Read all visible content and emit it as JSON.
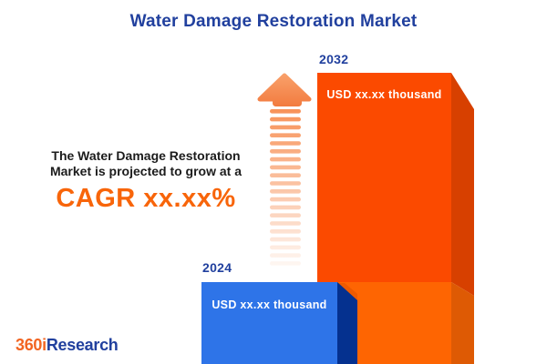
{
  "title": "Water Damage Restoration Market",
  "annotation": {
    "line1": "The Water Damage Restoration",
    "line2": "Market is projected to grow at a",
    "cagr": "CAGR xx.xx%"
  },
  "bars": {
    "b2024": {
      "year": "2024",
      "label": "USD xx.xx thousand",
      "face_color": "#2E74E8",
      "side_color": "#05318F"
    },
    "b2032": {
      "year": "2032",
      "label": "USD xx.xx thousand",
      "face_color": "#FB4A00",
      "face_color_lower": "#FE6502",
      "side_color": "#D74000",
      "side_color_lower": "#DE5A04"
    }
  },
  "logo": {
    "prefix": "360i",
    "suffix": "Research"
  },
  "colors": {
    "title_blue": "#21409E",
    "text_dark": "#1C1C1C",
    "cagr_orange": "#F8650A",
    "logo_orange": "#F26522",
    "arrow_head_top": "#F9A26C",
    "arrow_head_bottom": "#F27A3E",
    "arrow_stripe": "#F78B4E"
  },
  "chart_data": {
    "type": "bar",
    "title": "Water Damage Restoration Market",
    "categories": [
      "2024",
      "2032"
    ],
    "values": [
      "USD xx.xx thousand",
      "USD xx.xx thousand"
    ],
    "relative_heights": [
      0.28,
      1.0
    ],
    "bar_colors": [
      "#2E74E8",
      "#FB4A00"
    ],
    "annotation": "The Water Damage Restoration Market is projected to grow at a CAGR xx.xx%",
    "legend": "none",
    "grid": false,
    "xlabel": "",
    "ylabel": ""
  }
}
